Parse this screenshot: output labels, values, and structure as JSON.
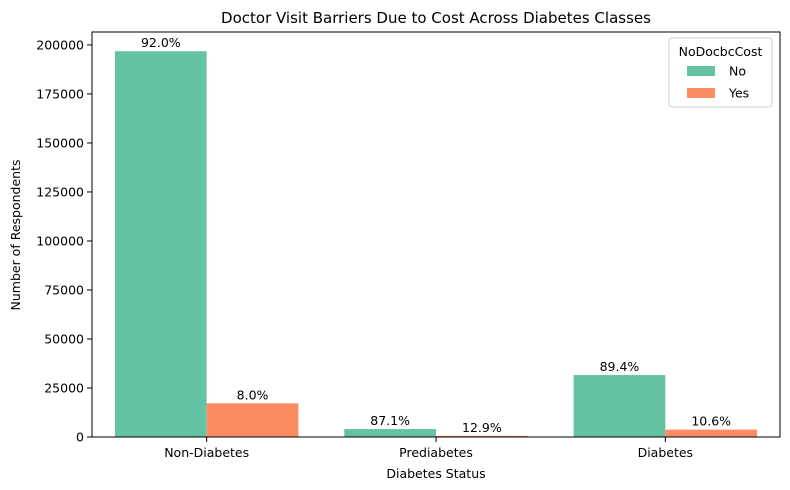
{
  "chart_data": {
    "type": "bar",
    "title": "Doctor Visit Barriers Due to Cost Across Diabetes Classes",
    "xlabel": "Diabetes Status",
    "ylabel": "Number of Respondents",
    "categories": [
      "Non-Diabetes",
      "Prediabetes",
      "Diabetes"
    ],
    "series": [
      {
        "name": "No",
        "color": "#66c2a5",
        "values": [
          196800,
          4050,
          31600
        ],
        "labels": [
          "92.0%",
          "87.1%",
          "89.4%"
        ]
      },
      {
        "name": "Yes",
        "color": "#fc8d62",
        "values": [
          17200,
          600,
          3750
        ],
        "labels": [
          "8.0%",
          "12.9%",
          "10.6%"
        ]
      }
    ],
    "ylim": [
      0,
      206600
    ],
    "yticks": [
      0,
      25000,
      50000,
      75000,
      100000,
      125000,
      150000,
      175000,
      200000
    ],
    "legend": {
      "title": "NoDocbcCost",
      "position": "top-right"
    },
    "grid": false
  }
}
